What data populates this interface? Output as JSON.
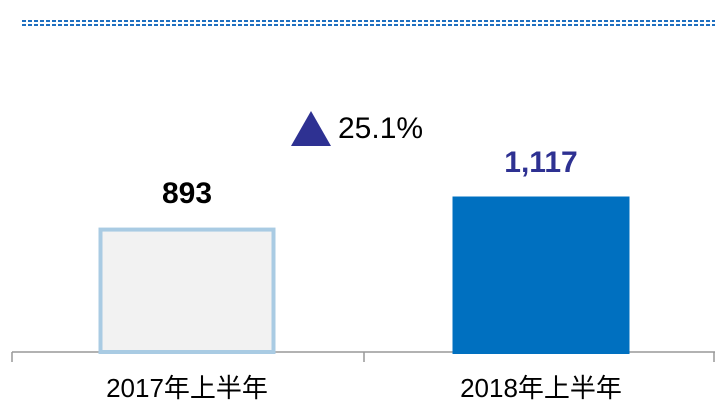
{
  "chart_data": {
    "type": "bar",
    "categories": [
      "2017年上半年",
      "2018年上半年"
    ],
    "values": [
      893,
      1117
    ],
    "value_labels": [
      "893",
      "1,117"
    ],
    "colors": [
      "#f2f2f2",
      "#0070c0"
    ],
    "outline_colors": [
      "#a9cbe3",
      "#0070c0"
    ],
    "label_colors": [
      "#000000",
      "#2e3192"
    ],
    "annotation": "25.1%"
  }
}
